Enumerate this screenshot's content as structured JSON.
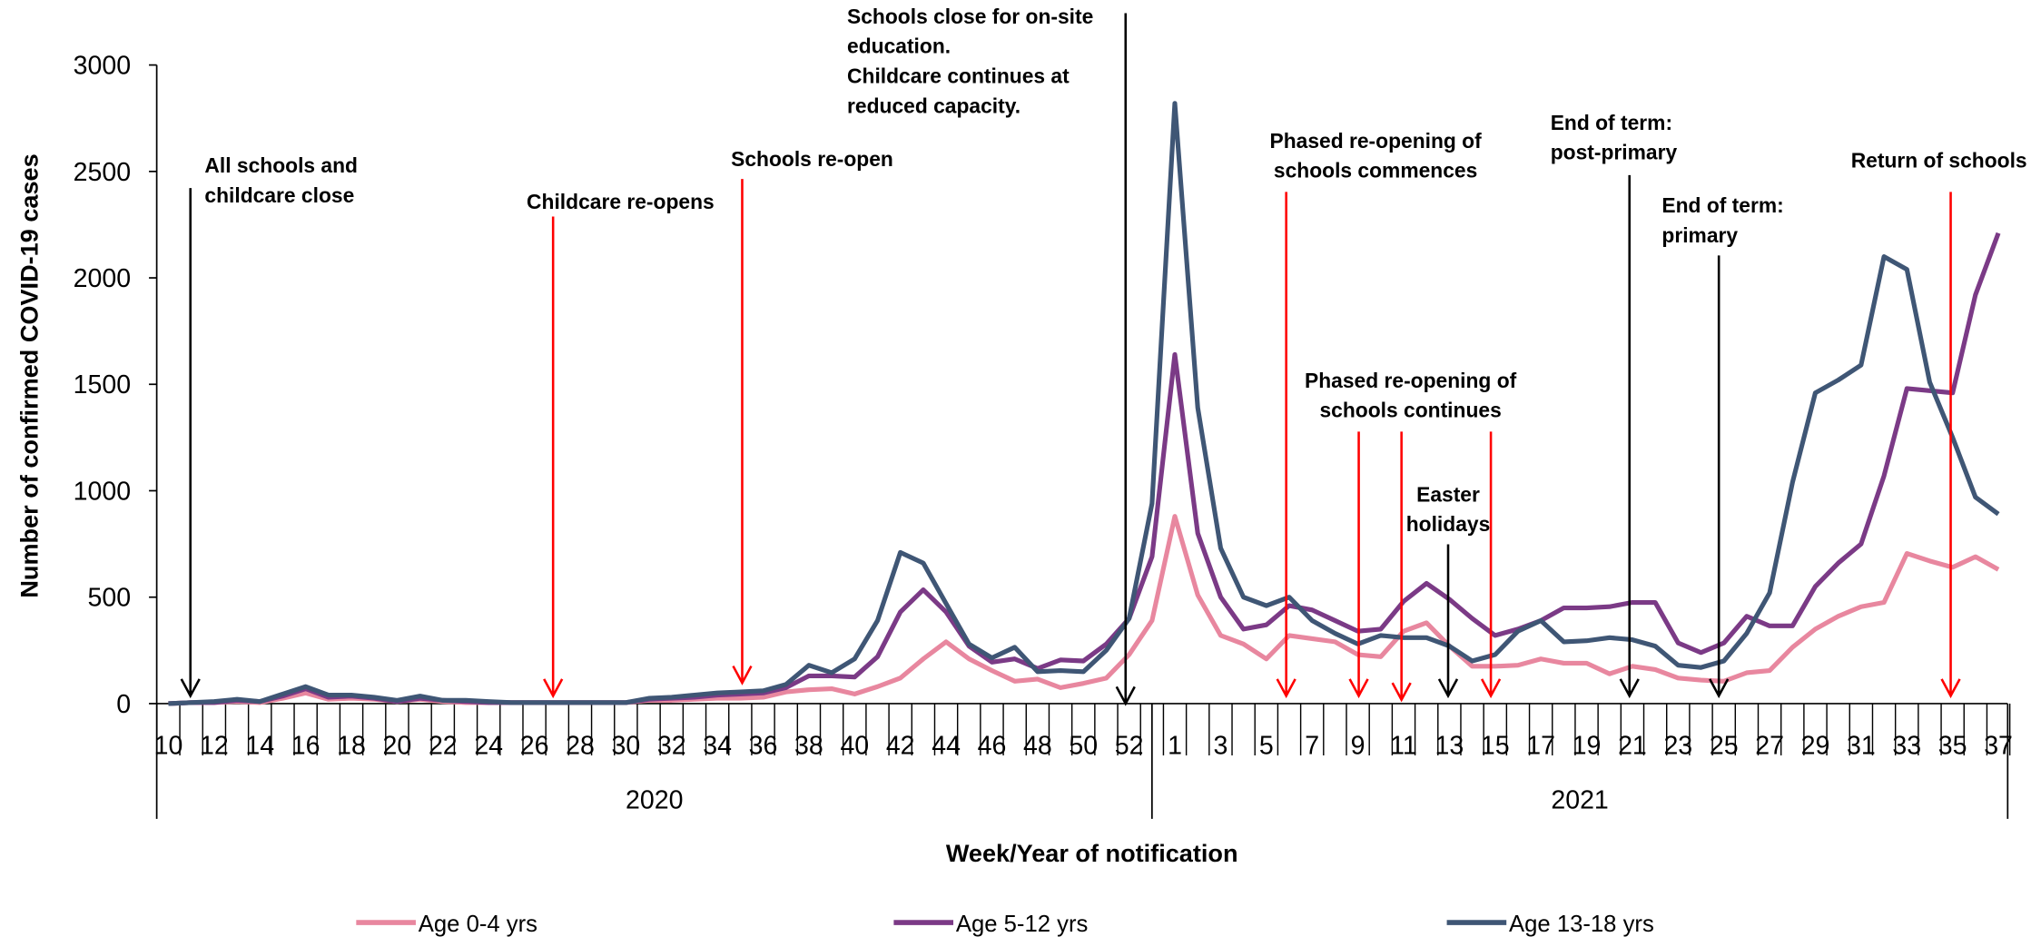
{
  "chart_data": {
    "type": "line",
    "x_axis_label": "Week/Year of notification",
    "y_axis_label": "Number of confirmed COVID-19 cases",
    "categories": [
      "10",
      null,
      "12",
      null,
      "14",
      null,
      "16",
      null,
      "18",
      null,
      "20",
      null,
      "22",
      null,
      "24",
      null,
      "26",
      null,
      "28",
      null,
      "30",
      null,
      "32",
      null,
      "34",
      null,
      "36",
      null,
      "38",
      null,
      "40",
      null,
      "42",
      null,
      "44",
      null,
      "46",
      null,
      "48",
      null,
      "50",
      null,
      "52",
      null,
      "1",
      null,
      "3",
      null,
      "5",
      null,
      "7",
      null,
      "9",
      null,
      "11",
      null,
      "13",
      null,
      "15",
      null,
      "17",
      null,
      "19",
      null,
      "21",
      null,
      "23",
      null,
      "25",
      null,
      "27",
      null,
      "29",
      null,
      "31",
      null,
      "33",
      null,
      "35",
      null,
      "37"
    ],
    "years": [
      "2020",
      "2021"
    ],
    "ylim": [
      0,
      3000
    ],
    "yticks": [
      0,
      500,
      1000,
      1500,
      2000,
      2500,
      3000
    ],
    "series": [
      {
        "name": "Age 0-4 yrs",
        "color": "#e8879f",
        "values": [
          0,
          5,
          5,
          10,
          5,
          25,
          50,
          20,
          25,
          20,
          10,
          20,
          10,
          5,
          5,
          5,
          5,
          5,
          5,
          5,
          5,
          15,
          15,
          20,
          25,
          25,
          30,
          55,
          65,
          70,
          45,
          80,
          120,
          210,
          290,
          210,
          155,
          105,
          115,
          75,
          95,
          120,
          230,
          390,
          880,
          510,
          320,
          280,
          210,
          320,
          305,
          290,
          230,
          220,
          340,
          380,
          270,
          175,
          175,
          180,
          210,
          190,
          190,
          140,
          175,
          160,
          120,
          110,
          105,
          145,
          155,
          265,
          350,
          410,
          455,
          475,
          705,
          670,
          640,
          690,
          630
        ]
      },
      {
        "name": "Age 5-12 yrs",
        "color": "#7b3a86",
        "values": [
          0,
          5,
          5,
          15,
          10,
          35,
          70,
          30,
          35,
          25,
          10,
          25,
          15,
          10,
          5,
          5,
          5,
          5,
          5,
          5,
          5,
          20,
          25,
          30,
          40,
          45,
          50,
          75,
          130,
          130,
          125,
          220,
          430,
          535,
          430,
          270,
          195,
          210,
          165,
          205,
          200,
          280,
          400,
          690,
          1640,
          800,
          500,
          350,
          370,
          460,
          440,
          390,
          340,
          350,
          480,
          565,
          490,
          400,
          320,
          350,
          390,
          450,
          450,
          455,
          475,
          475,
          285,
          240,
          285,
          410,
          365,
          365,
          550,
          660,
          750,
          1070,
          1480,
          1470,
          1460,
          1920,
          2210
        ]
      },
      {
        "name": "Age 13-18 yrs",
        "color": "#3f5675",
        "values": [
          0,
          5,
          10,
          20,
          10,
          45,
          80,
          40,
          40,
          30,
          15,
          35,
          15,
          15,
          10,
          5,
          5,
          5,
          5,
          5,
          5,
          25,
          30,
          40,
          50,
          55,
          60,
          90,
          180,
          145,
          210,
          390,
          710,
          660,
          470,
          280,
          215,
          265,
          150,
          155,
          150,
          250,
          400,
          940,
          2820,
          1390,
          730,
          500,
          460,
          500,
          390,
          330,
          280,
          320,
          310,
          310,
          270,
          200,
          230,
          340,
          390,
          290,
          295,
          310,
          300,
          270,
          180,
          170,
          200,
          330,
          520,
          1040,
          1460,
          1520,
          1590,
          2100,
          2040,
          1510,
          1250,
          970,
          890
        ]
      }
    ],
    "annotations": [
      {
        "text": [
          "All schools and",
          "childcare close"
        ],
        "color": "#000000"
      },
      {
        "text": [
          "Childcare re-opens"
        ],
        "color": "#ff0000"
      },
      {
        "text": [
          "Schools re-open"
        ],
        "color": "#ff0000"
      },
      {
        "text": [
          "Schools close for on-site",
          "education.",
          "Childcare continues at",
          "reduced capacity."
        ],
        "color": "#000000"
      },
      {
        "text": [
          "Phased re-opening of",
          "schools commences"
        ],
        "color": "#ff0000"
      },
      {
        "text": [
          "Phased re-opening of",
          "schools continues"
        ],
        "color": "#ff0000"
      },
      {
        "text": [
          "Easter",
          "holidays"
        ],
        "color": "#000000"
      },
      {
        "text": [
          "End of term:",
          "post-primary"
        ],
        "color": "#000000"
      },
      {
        "text": [
          "End of term:",
          "primary"
        ],
        "color": "#000000"
      },
      {
        "text": [
          "Return of schools"
        ],
        "color": "#ff0000"
      }
    ]
  }
}
